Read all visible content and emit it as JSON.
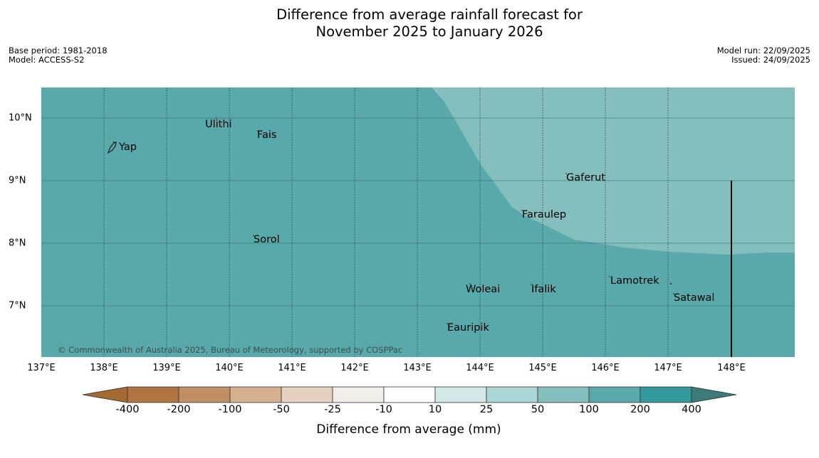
{
  "title": {
    "line1": "Difference from average rainfall forecast for",
    "line2": "November 2025 to January 2026"
  },
  "meta": {
    "base_period": "Base period: 1981-2018",
    "model": "Model: ACCESS-S2",
    "model_run": "Model run: 22/09/2025",
    "issued": "Issued: 24/09/2025"
  },
  "map": {
    "longitudes": [
      "137°E",
      "138°E",
      "139°E",
      "140°E",
      "141°E",
      "142°E",
      "143°E",
      "144°E",
      "145°E",
      "146°E",
      "147°E",
      "148°E"
    ],
    "latitudes": [
      "10°N",
      "9°N",
      "8°N",
      "7°N"
    ],
    "places": [
      "Ulithi",
      "Fais",
      "Yap",
      "Gaferut",
      "Faraulep",
      "Sorol",
      "Lamotrek",
      "Woleai",
      "Ifalik",
      "Satawal",
      "Eauripik"
    ],
    "copyright": "© Commonwealth of Australia 2025, Bureau of Meteorology, supported by COSPPac",
    "colors": {
      "base": "#5aa9aa",
      "light_region": "#84bfbe",
      "coast": "#1a1a1a"
    }
  },
  "colorbar": {
    "title": "Difference from average (mm)",
    "labels": [
      "-400",
      "-200",
      "-100",
      "-50",
      "-25",
      "-10",
      "10",
      "25",
      "50",
      "100",
      "200",
      "400"
    ],
    "colors": [
      "#a36a31",
      "#b07540",
      "#c09064",
      "#d4b190",
      "#e4d1c0",
      "#f1ede8",
      "#ffffff",
      "#d5e9e8",
      "#aad6d5",
      "#84bfbe",
      "#5aa9aa",
      "#34999a",
      "#3c7a7a"
    ]
  }
}
